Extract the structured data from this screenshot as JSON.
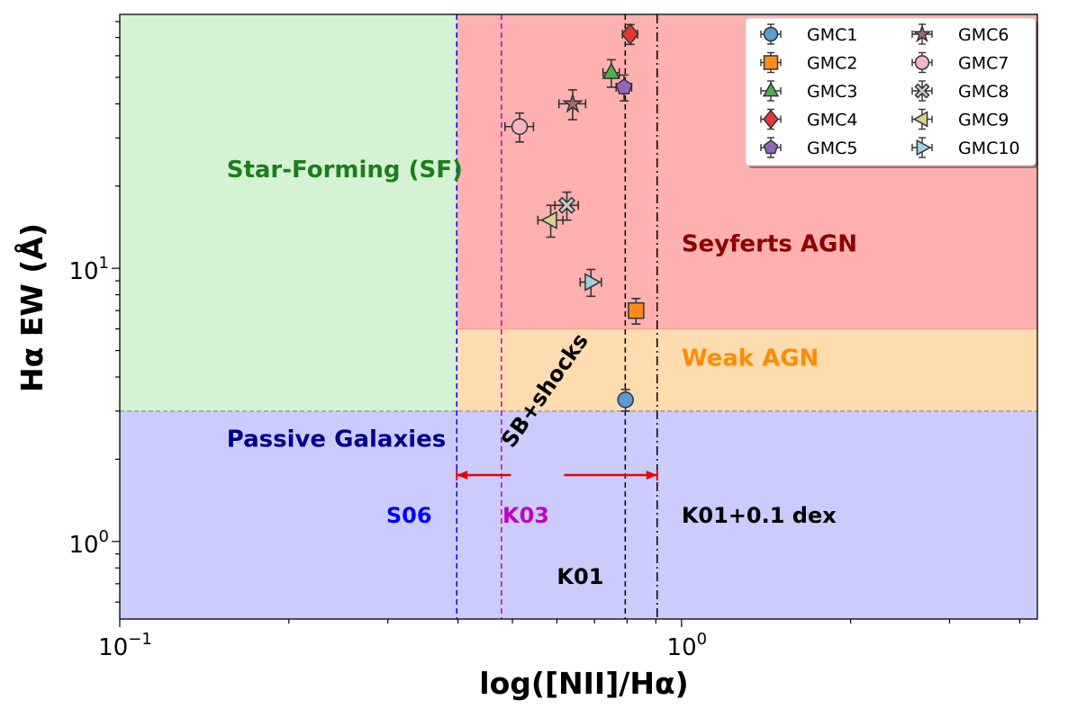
{
  "chart_data": {
    "type": "scatter",
    "xlabel": "log([NII]/Hα)",
    "ylabel": "Hα EW (Å)",
    "x_scale": "log",
    "y_scale": "log",
    "xlim": [
      0.1,
      4.3
    ],
    "ylim": [
      0.52,
      85
    ],
    "x_ticks": [
      {
        "value": 0.1,
        "base": "10",
        "exp": "−1"
      },
      {
        "value": 1.0,
        "base": "10",
        "exp": "0"
      }
    ],
    "y_ticks": [
      {
        "value": 1,
        "base": "10",
        "exp": "0"
      },
      {
        "value": 10,
        "base": "10",
        "exp": "1"
      }
    ],
    "regions": [
      {
        "name": "star-forming",
        "label": "Star-Forming (SF)",
        "x_range": [
          0.1,
          0.398
        ],
        "y_range": [
          3,
          85
        ],
        "fill": "#d5f2d5",
        "label_color": "#1a7f1a",
        "label_x": 0.155,
        "label_y": 21.5
      },
      {
        "name": "seyferts",
        "label": "Seyferts AGN",
        "x_range": [
          0.398,
          4.3
        ],
        "y_range": [
          6,
          85
        ],
        "fill": "#ffb0b0",
        "label_color": "#8b0000",
        "label_x": 1.0,
        "label_y": 11.5
      },
      {
        "name": "weak-agn",
        "label": "Weak AGN",
        "x_range": [
          0.398,
          4.3
        ],
        "y_range": [
          3,
          6
        ],
        "fill": "#ffdcb0",
        "label_color": "#ff8c00",
        "label_x": 1.0,
        "label_y": 4.4
      },
      {
        "name": "passive",
        "label": "Passive Galaxies",
        "x_range": [
          0.1,
          4.3
        ],
        "y_range": [
          0.52,
          3
        ],
        "fill": "#cbcbfc",
        "label_color": "#00008b",
        "label_x": 0.155,
        "label_y": 2.22
      }
    ],
    "reference_lines": [
      {
        "name": "S06",
        "label": "S06",
        "x": 0.398,
        "color": "#0000ff",
        "dash": "6,4",
        "label_x": 0.298,
        "label_y": 1.17,
        "label_color": "#0000ff"
      },
      {
        "name": "K03",
        "label": "K03",
        "x": 0.478,
        "color": "#c000c0",
        "dash": "6,4",
        "label_x": 0.48,
        "label_y": 1.17,
        "label_color": "#c000c0"
      },
      {
        "name": "K01",
        "label": "K01",
        "x": 0.794,
        "color": "#000000",
        "dash": "6,4",
        "label_x": 0.6,
        "label_y": 0.7,
        "label_color": "#000000"
      },
      {
        "name": "K01-plus",
        "label": "K01+0.1 dex",
        "x": 0.905,
        "color": "#000000",
        "dash": "10,4,2,4",
        "label_x": 1.0,
        "label_y": 1.17,
        "label_color": "#000000"
      }
    ],
    "annotation": {
      "label": "SB+shocks",
      "x": 0.585,
      "y": 3.45,
      "rotation": -55,
      "arrow_y": 1.75,
      "arrow_x_from": 0.398,
      "arrow_x_to": 0.905,
      "arrow_gap_from": 0.497,
      "arrow_gap_to": 0.618,
      "color": "#ee0000"
    },
    "series": [
      {
        "name": "GMC1",
        "marker": "circle",
        "color": "#5b9bd5",
        "x": 0.795,
        "y": 3.3,
        "xerr": 0.02,
        "yerr": 0.3
      },
      {
        "name": "GMC2",
        "marker": "square",
        "color": "#ff8c1a",
        "x": 0.83,
        "y": 7.0,
        "xerr": 0.025,
        "yerr": 0.75
      },
      {
        "name": "GMC3",
        "marker": "triangle-up",
        "color": "#4caf50",
        "x": 0.75,
        "y": 52.0,
        "xerr": 0.025,
        "yerr": 6.0
      },
      {
        "name": "GMC4",
        "marker": "diamond",
        "color": "#e53935",
        "x": 0.81,
        "y": 72.0,
        "xerr": 0.025,
        "yerr": 6.0
      },
      {
        "name": "GMC5",
        "marker": "pentagon",
        "color": "#9467bd",
        "x": 0.79,
        "y": 46.0,
        "xerr": 0.025,
        "yerr": 5.0
      },
      {
        "name": "GMC6",
        "marker": "star",
        "color": "#a1706a",
        "x": 0.64,
        "y": 40.0,
        "xerr": 0.035,
        "yerr": 5.0
      },
      {
        "name": "GMC7",
        "marker": "circle",
        "color": "#f4b6c2",
        "x": 0.515,
        "y": 33.0,
        "xerr": 0.03,
        "yerr": 4.0
      },
      {
        "name": "GMC8",
        "marker": "x-filled",
        "color": "#c7c7c7",
        "x": 0.625,
        "y": 17.0,
        "xerr": 0.03,
        "yerr": 2.0
      },
      {
        "name": "GMC9",
        "marker": "triangle-left",
        "color": "#d4d48a",
        "x": 0.585,
        "y": 15.0,
        "xerr": 0.03,
        "yerr": 2.0
      },
      {
        "name": "GMC10",
        "marker": "triangle-right",
        "color": "#9ed2e0",
        "x": 0.69,
        "y": 8.9,
        "xerr": 0.03,
        "yerr": 1.0
      }
    ]
  }
}
